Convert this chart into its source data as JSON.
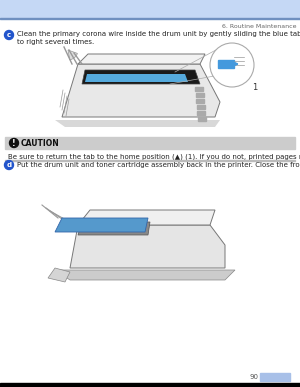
{
  "page_title": "6. Routine Maintenance",
  "page_number": "90",
  "header_bar_color": "#c5d8f5",
  "header_line_color": "#7090c0",
  "footer_bar_color": "#000000",
  "background_color": "#ffffff",
  "step_c_bullet_color": "#2255cc",
  "step_c_number": "c",
  "step_c_text": "Clean the primary corona wire inside the drum unit by gently sliding the blue tab from right to left and left\nto right several times.",
  "step_c_text_size": 5.0,
  "caution_bg_color": "#cccccc",
  "caution_label": "CAUTION",
  "caution_label_size": 5.5,
  "caution_text": "Be sure to return the tab to the home position (▲) (1). If you do not, printed pages may have a vertical stripe.",
  "caution_text_size": 5.0,
  "step_d_bullet_color": "#2255cc",
  "step_d_number": "d",
  "step_d_text": "Put the drum unit and toner cartridge assembly back in the printer. Close the front cover.",
  "step_d_text_size": 5.0,
  "page_num_color": "#555555",
  "page_num_size": 5.0,
  "page_num_bg": "#a8c0e8",
  "title_fontsize": 4.5
}
